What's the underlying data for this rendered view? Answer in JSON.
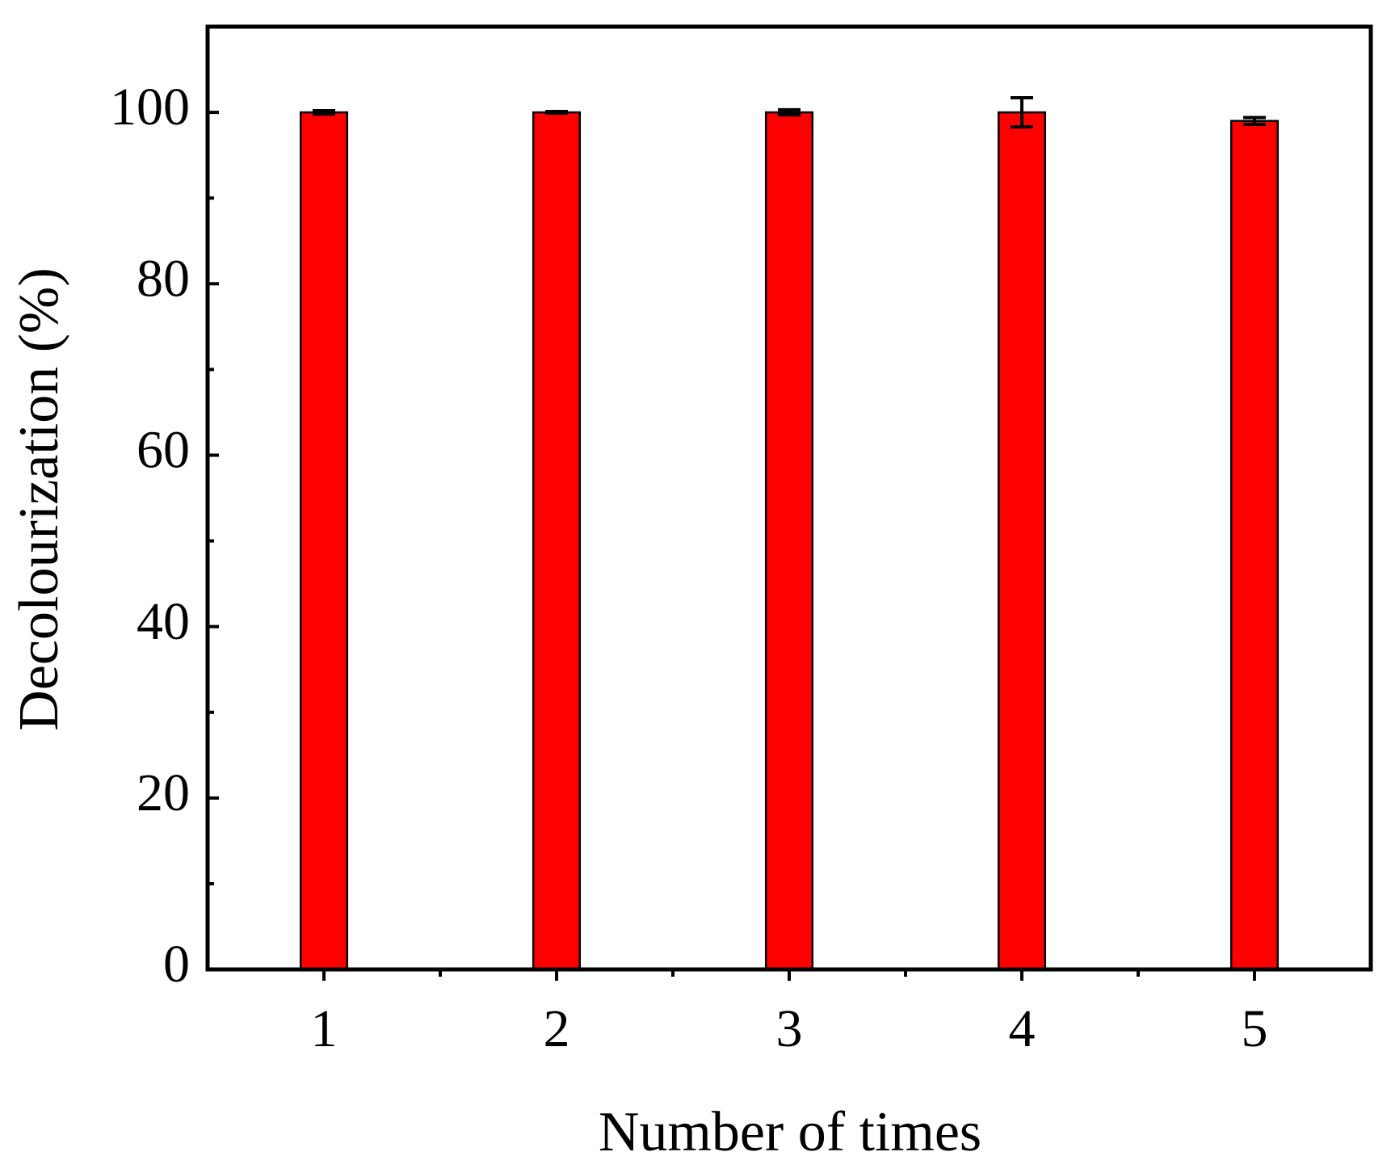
{
  "chart_data": {
    "type": "bar",
    "x_label": "Number of times",
    "y_label": "Decolourization (%)",
    "categories": [
      "1",
      "2",
      "3",
      "4",
      "5"
    ],
    "values": [
      100,
      100,
      100,
      100,
      99
    ],
    "errors": [
      0.2,
      0.1,
      0.3,
      1.7,
      0.4
    ],
    "color": "#ff0000",
    "ylim": [
      0,
      110
    ],
    "yticks": [
      0,
      20,
      40,
      60,
      80,
      100
    ],
    "minor_yticks": [
      10,
      30,
      50,
      70,
      90
    ],
    "grid": false
  }
}
